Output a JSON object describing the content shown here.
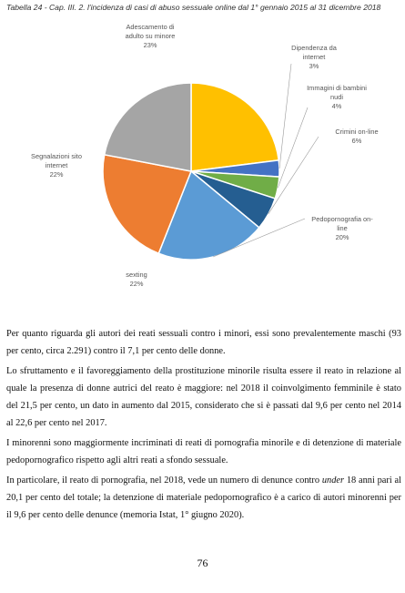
{
  "caption": "Tabella 24 - Cap. III. 2. l'incidenza di casi di abuso sessuale online  dal 1° gennaio 2015 al 31 dicembre 2018",
  "chart_data": {
    "type": "pie",
    "title": "",
    "slices": [
      {
        "label_lines": [
          "Adescamento di",
          "adulto su minore"
        ],
        "value": 23,
        "value_label": "23%",
        "color": "#ffc000"
      },
      {
        "label_lines": [
          "Dipendenza da",
          "internet"
        ],
        "value": 3,
        "value_label": "3%",
        "color": "#4472c4"
      },
      {
        "label_lines": [
          "Immagini di bambini",
          "nudi"
        ],
        "value": 4,
        "value_label": "4%",
        "color": "#70ad47"
      },
      {
        "label_lines": [
          "Crimini on-line"
        ],
        "value": 6,
        "value_label": "6%",
        "color": "#255e91"
      },
      {
        "label_lines": [
          "Pedopornografia on-",
          "line"
        ],
        "value": 20,
        "value_label": "20%",
        "color": "#5b9bd5"
      },
      {
        "label_lines": [
          "sexting"
        ],
        "value": 22,
        "value_label": "22%",
        "color": "#ed7d31"
      },
      {
        "label_lines": [
          "Segnalazioni sito",
          "internet"
        ],
        "value": 22,
        "value_label": "22%",
        "color": "#a5a5a5"
      }
    ]
  },
  "paragraphs": [
    "Per quanto riguarda gli autori dei reati sessuali contro i minori, essi sono prevalentemente maschi (93 per cento, circa 2.291) contro il 7,1 per cento delle donne.",
    "Lo sfruttamento e il favoreggiamento della prostituzione minorile risulta essere il reato in relazione al quale la presenza di donne autrici del reato è maggiore: nel 2018 il coinvolgimento femminile è stato del 21,5 per cento, un dato in aumento dal 2015, considerato che si è passati dal 9,6 per cento nel 2014 al 22,6 per cento nel 2017.",
    "I minorenni sono maggiormente incriminati di reati di pornografia minorile e di detenzione di materiale pedopornografico rispetto agli altri reati a sfondo sessuale."
  ],
  "paragraph4": {
    "before": "In particolare, il reato di pornografia, nel 2018, vede un numero di denunce contro ",
    "emphasis": "under",
    "after": " 18 anni pari al 20,1 per cento del totale; la detenzione di materiale pedopornografico è a carico di autori minorenni per il 9,6 per cento delle denunce (memoria Istat, 1° giugno 2020)."
  },
  "page_number": "76"
}
